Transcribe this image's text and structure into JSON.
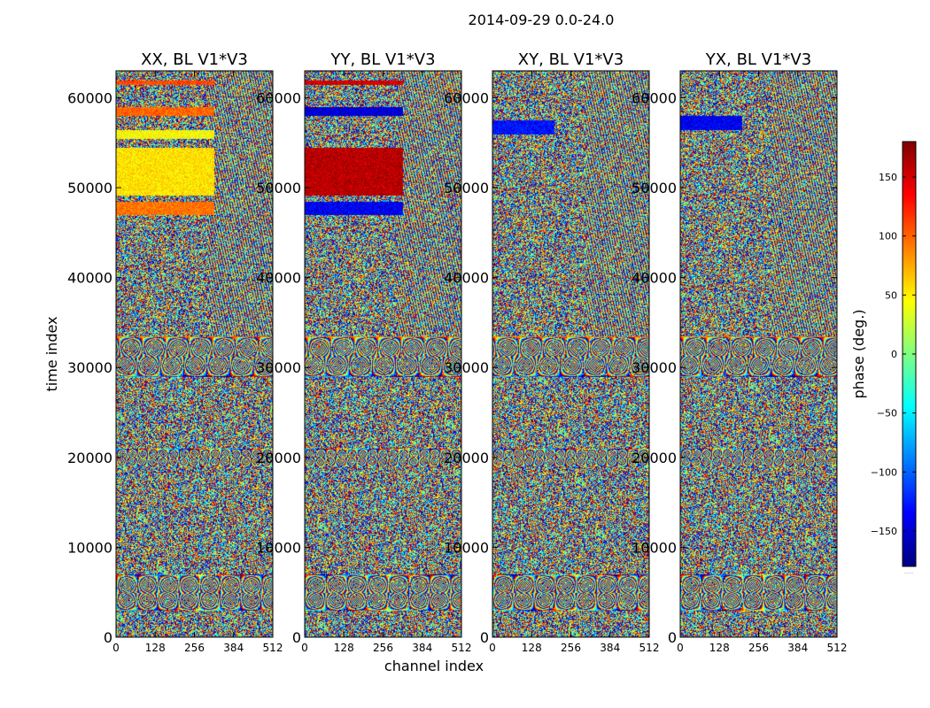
{
  "figure": {
    "suptitle": "2014-09-29 0.0-24.0"
  },
  "chart_data": {
    "type": "heatmap",
    "colormap": "jet",
    "suptitle": "2014-09-29 0.0-24.0",
    "xlabel": "channel index",
    "ylabel": "time index",
    "xlim": [
      0,
      512
    ],
    "ylim": [
      0,
      63000
    ],
    "x_ticks": [
      0,
      128,
      256,
      384,
      512
    ],
    "x_tick_labels": [
      "0",
      "128",
      "256",
      "384",
      "512"
    ],
    "y_ticks": [
      0,
      10000,
      20000,
      30000,
      40000,
      50000,
      60000
    ],
    "y_tick_labels": [
      "0",
      "10000",
      "20000",
      "30000",
      "40000",
      "50000",
      "60000"
    ],
    "panels": [
      {
        "title": "XX, BL V1*V3",
        "description": "phase waterfall",
        "flat_regions": [
          {
            "t0": 47000,
            "t1": 48500,
            "c0": 0,
            "c1": 320,
            "phase": 95
          },
          {
            "t0": 49200,
            "t1": 54500,
            "c0": 0,
            "c1": 320,
            "phase": 55
          },
          {
            "t0": 55500,
            "t1": 56500,
            "c0": 0,
            "c1": 320,
            "phase": 45
          },
          {
            "t0": 58000,
            "t1": 59000,
            "c0": 0,
            "c1": 320,
            "phase": 100
          },
          {
            "t0": 61500,
            "t1": 62000,
            "c0": 0,
            "c1": 320,
            "phase": 110
          }
        ]
      },
      {
        "title": "YY, BL V1*V3",
        "description": "phase waterfall",
        "flat_regions": [
          {
            "t0": 47000,
            "t1": 48500,
            "c0": 0,
            "c1": 320,
            "phase": -140
          },
          {
            "t0": 49200,
            "t1": 54500,
            "c0": 0,
            "c1": 320,
            "phase": 160
          },
          {
            "t0": 58000,
            "t1": 59000,
            "c0": 0,
            "c1": 320,
            "phase": -150
          },
          {
            "t0": 61500,
            "t1": 62000,
            "c0": 0,
            "c1": 320,
            "phase": 150
          }
        ]
      },
      {
        "title": "XY, BL V1*V3",
        "description": "phase waterfall",
        "flat_regions": [
          {
            "t0": 56000,
            "t1": 57500,
            "c0": 0,
            "c1": 200,
            "phase": -130
          }
        ]
      },
      {
        "title": "YX, BL V1*V3",
        "description": "phase waterfall",
        "flat_regions": [
          {
            "t0": 56500,
            "t1": 58000,
            "c0": 0,
            "c1": 200,
            "phase": -140
          }
        ]
      }
    ],
    "fringe_bands": [
      {
        "t0": 29000,
        "t1": 33500
      },
      {
        "t0": 19000,
        "t1": 21000
      },
      {
        "t0": 3000,
        "t1": 7000
      }
    ],
    "colorbar": {
      "label": "phase (deg.)",
      "range": [
        -180,
        180
      ],
      "ticks": [
        150,
        100,
        50,
        0,
        -50,
        -100,
        -150
      ],
      "tick_labels": [
        "150",
        "100",
        "50",
        "0",
        "−50",
        "−100",
        "−150"
      ],
      "footer": "......"
    }
  }
}
